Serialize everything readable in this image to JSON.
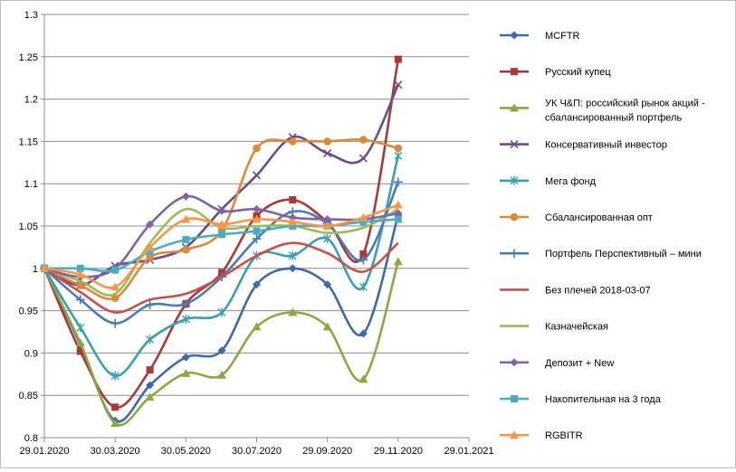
{
  "chart_data": {
    "type": "line",
    "x": [
      "29.01.2020",
      "29.02.2020",
      "30.03.2020",
      "29.04.2020",
      "30.05.2020",
      "30.06.2020",
      "30.07.2020",
      "30.08.2020",
      "29.09.2020",
      "30.10.2020",
      "29.11.2020"
    ],
    "x_ticks": [
      "29.01.2020",
      "30.03.2020",
      "30.05.2020",
      "30.07.2020",
      "29.09.2020",
      "29.11.2020",
      "29.01.2021"
    ],
    "xlim": [
      "29.01.2020",
      "29.01.2021"
    ],
    "ylim": [
      0.8,
      1.3
    ],
    "y_ticks": [
      "0.8",
      "0.85",
      "0.9",
      "0.95",
      "1",
      "1.05",
      "1.1",
      "1.15",
      "1.2",
      "1.25",
      "1.3"
    ],
    "grid": "horizontal",
    "legend_position": "right",
    "smooth": true,
    "series": [
      {
        "name": "MCFTR",
        "color": "#3f6aa8",
        "marker": "diamond",
        "values": [
          1.0,
          0.91,
          0.82,
          0.862,
          0.895,
          0.903,
          0.981,
          1.0,
          0.981,
          0.923,
          1.063
        ]
      },
      {
        "name": "Русский купец",
        "color": "#a83a36",
        "marker": "square",
        "values": [
          1.0,
          0.902,
          0.836,
          0.88,
          0.958,
          0.995,
          1.062,
          1.081,
          1.055,
          1.017,
          1.247
        ]
      },
      {
        "name": "УК Ч&П: российский рынок акций - сбалансированный портфель",
        "color": "#8aa844",
        "marker": "triangle",
        "values": [
          1.0,
          0.912,
          0.817,
          0.848,
          0.876,
          0.874,
          0.931,
          0.948,
          0.931,
          0.869,
          1.008
        ]
      },
      {
        "name": "Консервативный инвестор",
        "color": "#6a4c8c",
        "marker": "x",
        "values": [
          1.0,
          0.98,
          1.003,
          1.01,
          1.025,
          1.07,
          1.11,
          1.155,
          1.136,
          1.13,
          1.217
        ]
      },
      {
        "name": "Мега фонд",
        "color": "#3aa0b0",
        "marker": "star",
        "values": [
          1.0,
          0.93,
          0.873,
          0.916,
          0.94,
          0.948,
          1.015,
          1.015,
          1.035,
          0.978,
          1.133
        ]
      },
      {
        "name": "Сбалансированная опт",
        "color": "#d98a3a",
        "marker": "circle",
        "values": [
          1.0,
          0.98,
          0.965,
          1.013,
          1.022,
          1.045,
          1.142,
          1.15,
          1.15,
          1.152,
          1.142
        ]
      },
      {
        "name": "Портфель  Перспективный  – мини",
        "color": "#4a7ab8",
        "marker": "plus",
        "values": [
          1.0,
          0.963,
          0.935,
          0.957,
          0.958,
          0.99,
          1.035,
          1.067,
          1.053,
          1.01,
          1.102
        ]
      },
      {
        "name": "Без плечей  2018-03-07",
        "color": "#c9504a",
        "marker": "none",
        "values": [
          1.0,
          0.972,
          0.948,
          0.963,
          0.97,
          0.99,
          1.015,
          1.03,
          1.018,
          0.996,
          1.03
        ]
      },
      {
        "name": "Казначейская",
        "color": "#9bbb59",
        "marker": "none",
        "values": [
          1.0,
          0.985,
          0.97,
          1.03,
          1.07,
          1.048,
          1.05,
          1.05,
          1.042,
          1.048,
          1.07
        ]
      },
      {
        "name": "Депозит + New",
        "color": "#8064a2",
        "marker": "diamond",
        "values": [
          1.0,
          0.99,
          1.0,
          1.052,
          1.085,
          1.068,
          1.07,
          1.06,
          1.058,
          1.058,
          1.065
        ]
      },
      {
        "name": "Накопительная на 3 года",
        "color": "#4bacc6",
        "marker": "square",
        "values": [
          1.0,
          1.0,
          0.998,
          1.02,
          1.034,
          1.04,
          1.044,
          1.05,
          1.05,
          1.055,
          1.058
        ]
      },
      {
        "name": "RGBITR",
        "color": "#f79646",
        "marker": "triangle",
        "values": [
          1.0,
          0.993,
          0.978,
          1.025,
          1.058,
          1.052,
          1.058,
          1.055,
          1.05,
          1.06,
          1.075
        ]
      }
    ]
  }
}
